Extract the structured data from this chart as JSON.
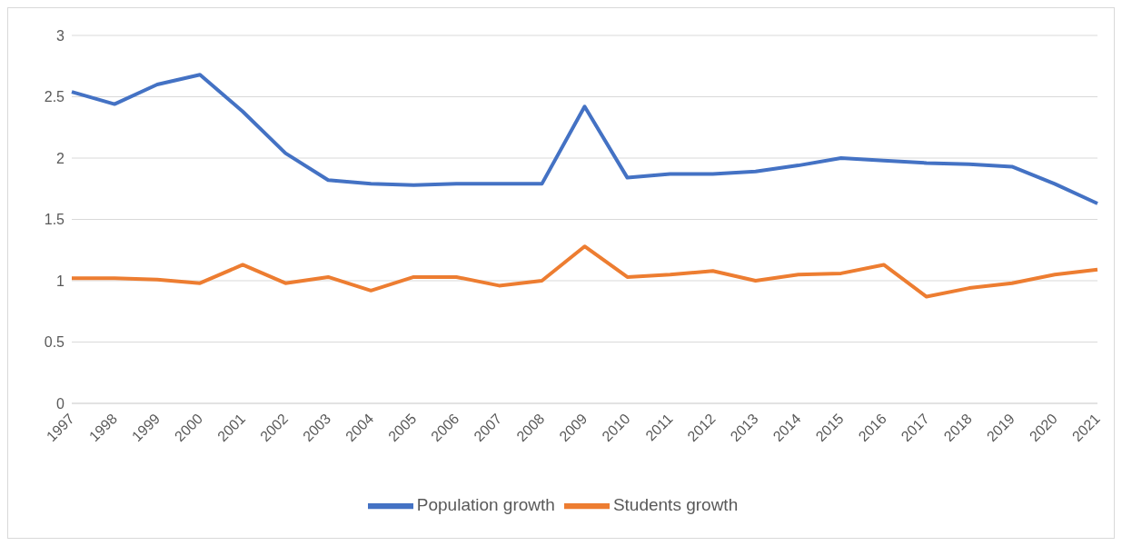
{
  "chart_data": {
    "type": "line",
    "categories": [
      "1997",
      "1998",
      "1999",
      "2000",
      "2001",
      "2002",
      "2003",
      "2004",
      "2005",
      "2006",
      "2007",
      "2008",
      "2009",
      "2010",
      "2011",
      "2012",
      "2013",
      "2014",
      "2015",
      "2016",
      "2017",
      "2018",
      "2019",
      "2020",
      "2021"
    ],
    "series": [
      {
        "name": "Population growth",
        "color": "#4472c4",
        "values": [
          2.54,
          2.44,
          2.6,
          2.68,
          2.38,
          2.04,
          1.82,
          1.79,
          1.78,
          1.79,
          1.79,
          1.79,
          2.42,
          1.84,
          1.87,
          1.87,
          1.89,
          1.94,
          2.0,
          1.98,
          1.96,
          1.95,
          1.93,
          1.79,
          1.63
        ]
      },
      {
        "name": "Students growth",
        "color": "#ed7d31",
        "values": [
          1.02,
          1.02,
          1.01,
          0.98,
          1.13,
          0.98,
          1.03,
          0.92,
          1.03,
          1.03,
          0.96,
          1.0,
          1.28,
          1.03,
          1.05,
          1.08,
          1.0,
          1.05,
          1.06,
          1.13,
          0.87,
          0.94,
          0.98,
          1.05,
          1.09
        ]
      }
    ],
    "ylim": [
      0,
      3
    ],
    "yticks": [
      0,
      0.5,
      1,
      1.5,
      2,
      2.5,
      3
    ],
    "grid": "y",
    "legend": "bottom",
    "marker": "none",
    "line_style": "solid"
  }
}
